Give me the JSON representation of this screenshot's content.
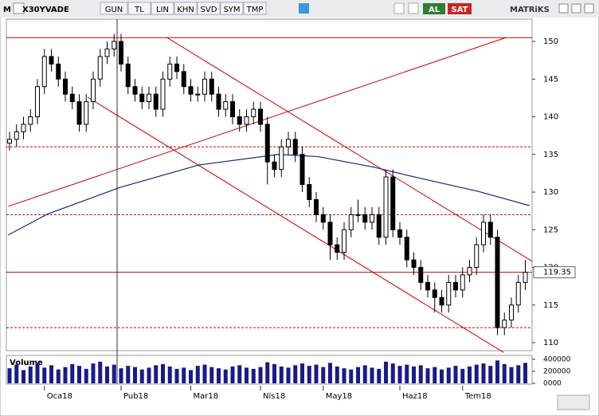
{
  "toolbar": {
    "menu": "M",
    "symbol": "X30YVADE",
    "buttons": [
      "GUN",
      "TL",
      "LIN",
      "KHN",
      "SVD",
      "SYM",
      "TMP"
    ],
    "buy": "AL",
    "sell": "SAT",
    "brand": "MATRiKS"
  },
  "chart_data": {
    "type": "candlestick",
    "categories": [
      null,
      null,
      null,
      null,
      null,
      "Oca18",
      null,
      null,
      null,
      null,
      null,
      null,
      null,
      null,
      null,
      null,
      "Pub18",
      null,
      null,
      null,
      null,
      null,
      null,
      null,
      null,
      null,
      "Mar18",
      null,
      null,
      null,
      null,
      null,
      null,
      null,
      null,
      null,
      "Nis18",
      null,
      null,
      null,
      null,
      null,
      null,
      null,
      null,
      "May18",
      null,
      null,
      null,
      null,
      null,
      null,
      null,
      null,
      null,
      null,
      "Haz18",
      null,
      null,
      null,
      null,
      null,
      null,
      null,
      null,
      "Tem18",
      null,
      null,
      null,
      null,
      null,
      null,
      null,
      null,
      null
    ],
    "open": [
      136.5,
      137,
      138,
      139,
      140,
      144,
      148,
      147,
      145,
      143,
      142,
      139,
      142,
      145,
      148,
      149,
      150,
      147,
      144,
      143,
      142,
      143,
      141,
      145,
      147,
      146,
      144,
      143,
      143,
      145,
      143,
      141,
      142,
      140,
      139,
      140,
      141,
      139,
      134,
      133,
      136,
      137,
      135,
      131,
      129,
      127,
      126,
      123,
      122,
      125,
      127,
      127,
      126,
      127,
      124,
      132,
      125,
      124,
      121,
      120,
      118,
      117,
      116,
      115,
      118,
      117,
      119,
      120,
      123,
      126,
      124,
      112,
      113,
      115,
      118
    ],
    "high": [
      138,
      139,
      140,
      141,
      145,
      149,
      149,
      148,
      146,
      144,
      143,
      143,
      146,
      149,
      150,
      151,
      151,
      148,
      145,
      144,
      144,
      144,
      146,
      148,
      148,
      147,
      145,
      144,
      146,
      146,
      144,
      143,
      143,
      141,
      141,
      142,
      142,
      140,
      135,
      137,
      138,
      138,
      136,
      132,
      130,
      128,
      127,
      124,
      126,
      128,
      129,
      128,
      128,
      128,
      133,
      133,
      126,
      125,
      122,
      121,
      119,
      118,
      117,
      119,
      119,
      120,
      121,
      124,
      127,
      127,
      125,
      114,
      116,
      119,
      121
    ],
    "low": [
      135.5,
      136,
      137,
      138,
      139,
      143,
      146,
      144,
      142,
      141,
      138,
      138,
      141,
      144,
      147,
      148,
      146,
      143,
      142,
      141,
      141,
      140,
      140,
      144,
      145,
      143,
      142,
      142,
      142,
      142,
      140,
      140,
      139,
      138,
      138,
      139,
      138,
      131,
      132,
      132,
      135,
      134,
      130,
      128,
      126,
      125,
      121,
      121,
      121,
      124,
      126,
      125,
      125,
      123,
      123,
      124,
      123,
      120,
      119,
      117,
      116,
      114,
      114,
      114,
      116,
      116,
      118,
      119,
      122,
      123,
      111,
      111,
      112,
      114,
      117
    ],
    "close": [
      137,
      138,
      139,
      140,
      144,
      148,
      147,
      145,
      143,
      142,
      139,
      142,
      145,
      148,
      149,
      150,
      147,
      144,
      143,
      142,
      143,
      141,
      145,
      147,
      146,
      144,
      143,
      143,
      145,
      143,
      141,
      142,
      140,
      139,
      140,
      141,
      139,
      134,
      133,
      136,
      137,
      135,
      131,
      129,
      127,
      126,
      123,
      122,
      125,
      127,
      127,
      126,
      127,
      124,
      132,
      125,
      124,
      121,
      120,
      118,
      117,
      116,
      115,
      118,
      117,
      119,
      120,
      123,
      126,
      124,
      112,
      113,
      115,
      118,
      119.35
    ],
    "ylim": [
      108.5,
      153
    ],
    "yticks": [
      110,
      115,
      120,
      125,
      130,
      135,
      140,
      145,
      150
    ],
    "last_price": 119.35,
    "levels": [
      {
        "value": 150.5,
        "style": "solid"
      },
      {
        "value": 119.35,
        "style": "solid"
      },
      {
        "value": 136,
        "style": "dashed"
      },
      {
        "value": 127,
        "style": "dashed"
      },
      {
        "value": 112,
        "style": "dashed"
      }
    ],
    "level_color": "#cc0000",
    "trendlines": [
      {
        "x": [
          -0.2,
          71.2
        ],
        "y": [
          128.1,
          150.5
        ]
      },
      {
        "x": [
          22.6,
          75
        ],
        "y": [
          150.5,
          120.8
        ]
      },
      {
        "x": [
          11.2,
          70.9
        ],
        "y": [
          142.6,
          108.7
        ]
      }
    ],
    "moving_average": {
      "color": "#1a237e",
      "x": [
        -0.2,
        5.5,
        15.8,
        27.2,
        38.6,
        44.3,
        52.3,
        58.1,
        67.2,
        74.6
      ],
      "values": [
        124.3,
        127.1,
        130.6,
        133.6,
        135,
        134.7,
        133.3,
        132,
        130.1,
        128.2
      ]
    },
    "volume": {
      "label": "Volume",
      "color": "#1a1a8c",
      "values": [
        250000,
        310000,
        220000,
        280000,
        340000,
        260000,
        300000,
        230000,
        270000,
        320000,
        290000,
        240000,
        330000,
        360000,
        280000,
        310000,
        250000,
        290000,
        270000,
        230000,
        260000,
        300000,
        320000,
        280000,
        240000,
        260000,
        220000,
        290000,
        310000,
        270000,
        250000,
        230000,
        280000,
        300000,
        260000,
        240000,
        270000,
        350000,
        320000,
        280000,
        260000,
        300000,
        330000,
        290000,
        310000,
        270000,
        340000,
        280000,
        250000,
        230000,
        270000,
        300000,
        260000,
        240000,
        360000,
        330000,
        290000,
        310000,
        280000,
        300000,
        250000,
        270000,
        230000,
        260000,
        290000,
        240000,
        280000,
        310000,
        330000,
        290000,
        380000,
        320000,
        270000,
        300000,
        340000
      ],
      "ylim": [
        0,
        450000
      ],
      "yticks": [
        400000,
        200000,
        {
          "value": 0,
          "label": "0000"
        }
      ]
    }
  }
}
